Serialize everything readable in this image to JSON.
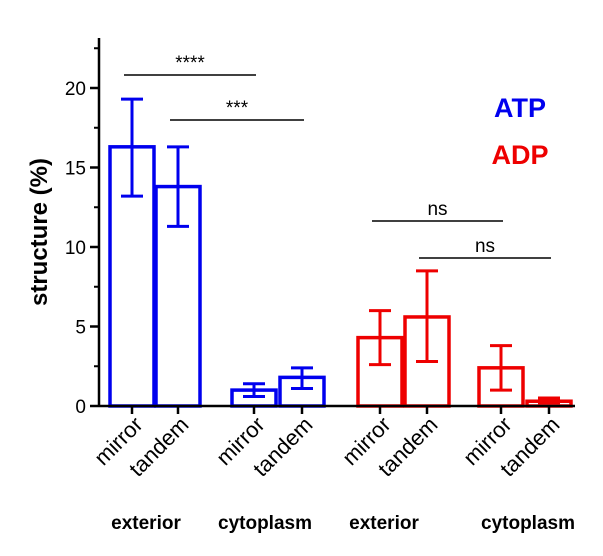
{
  "chart_data": {
    "type": "bar",
    "title": "",
    "xlabel": "",
    "ylabel": "structure (%)",
    "ylim": [
      0,
      25
    ],
    "yticks": [
      0,
      5,
      10,
      15,
      20
    ],
    "grid": false,
    "legend_position": "top-right",
    "colors": {
      "ATP": "#0000ee",
      "ADP": "#ee0000"
    },
    "legend": [
      {
        "name": "ATP",
        "color": "#0000ee"
      },
      {
        "name": "ADP",
        "color": "#ee0000"
      }
    ],
    "bars": [
      {
        "label": "mirror",
        "group": "exterior",
        "series": "ATP",
        "value": 16.3,
        "err_low": 13.2,
        "err_high": 19.3
      },
      {
        "label": "tandem",
        "group": "exterior",
        "series": "ATP",
        "value": 13.8,
        "err_low": 11.3,
        "err_high": 16.3
      },
      {
        "label": "mirror",
        "group": "cytoplasm",
        "series": "ATP",
        "value": 1.0,
        "err_low": 0.6,
        "err_high": 1.4
      },
      {
        "label": "tandem",
        "group": "cytoplasm",
        "series": "ATP",
        "value": 1.8,
        "err_low": 1.1,
        "err_high": 2.4
      },
      {
        "label": "mirror",
        "group": "exterior",
        "series": "ADP",
        "value": 4.3,
        "err_low": 2.6,
        "err_high": 6.0
      },
      {
        "label": "tandem",
        "group": "exterior",
        "series": "ADP",
        "value": 5.6,
        "err_low": 2.8,
        "err_high": 8.5
      },
      {
        "label": "mirror",
        "group": "cytoplasm",
        "series": "ADP",
        "value": 2.4,
        "err_low": 1.0,
        "err_high": 3.8
      },
      {
        "label": "tandem",
        "group": "cytoplasm",
        "series": "ADP",
        "value": 0.3,
        "err_low": 0.2,
        "err_high": 0.5
      }
    ],
    "group_labels": [
      "exterior",
      "cytoplasm",
      "exterior",
      "cytoplasm"
    ],
    "significance": [
      {
        "label": "****",
        "from_bar": 0,
        "to_bar": 2
      },
      {
        "label": "***",
        "from_bar": 1,
        "to_bar": 3
      },
      {
        "label": "ns",
        "from_bar": 4,
        "to_bar": 6
      },
      {
        "label": "ns",
        "from_bar": 5,
        "to_bar": 7
      }
    ]
  }
}
